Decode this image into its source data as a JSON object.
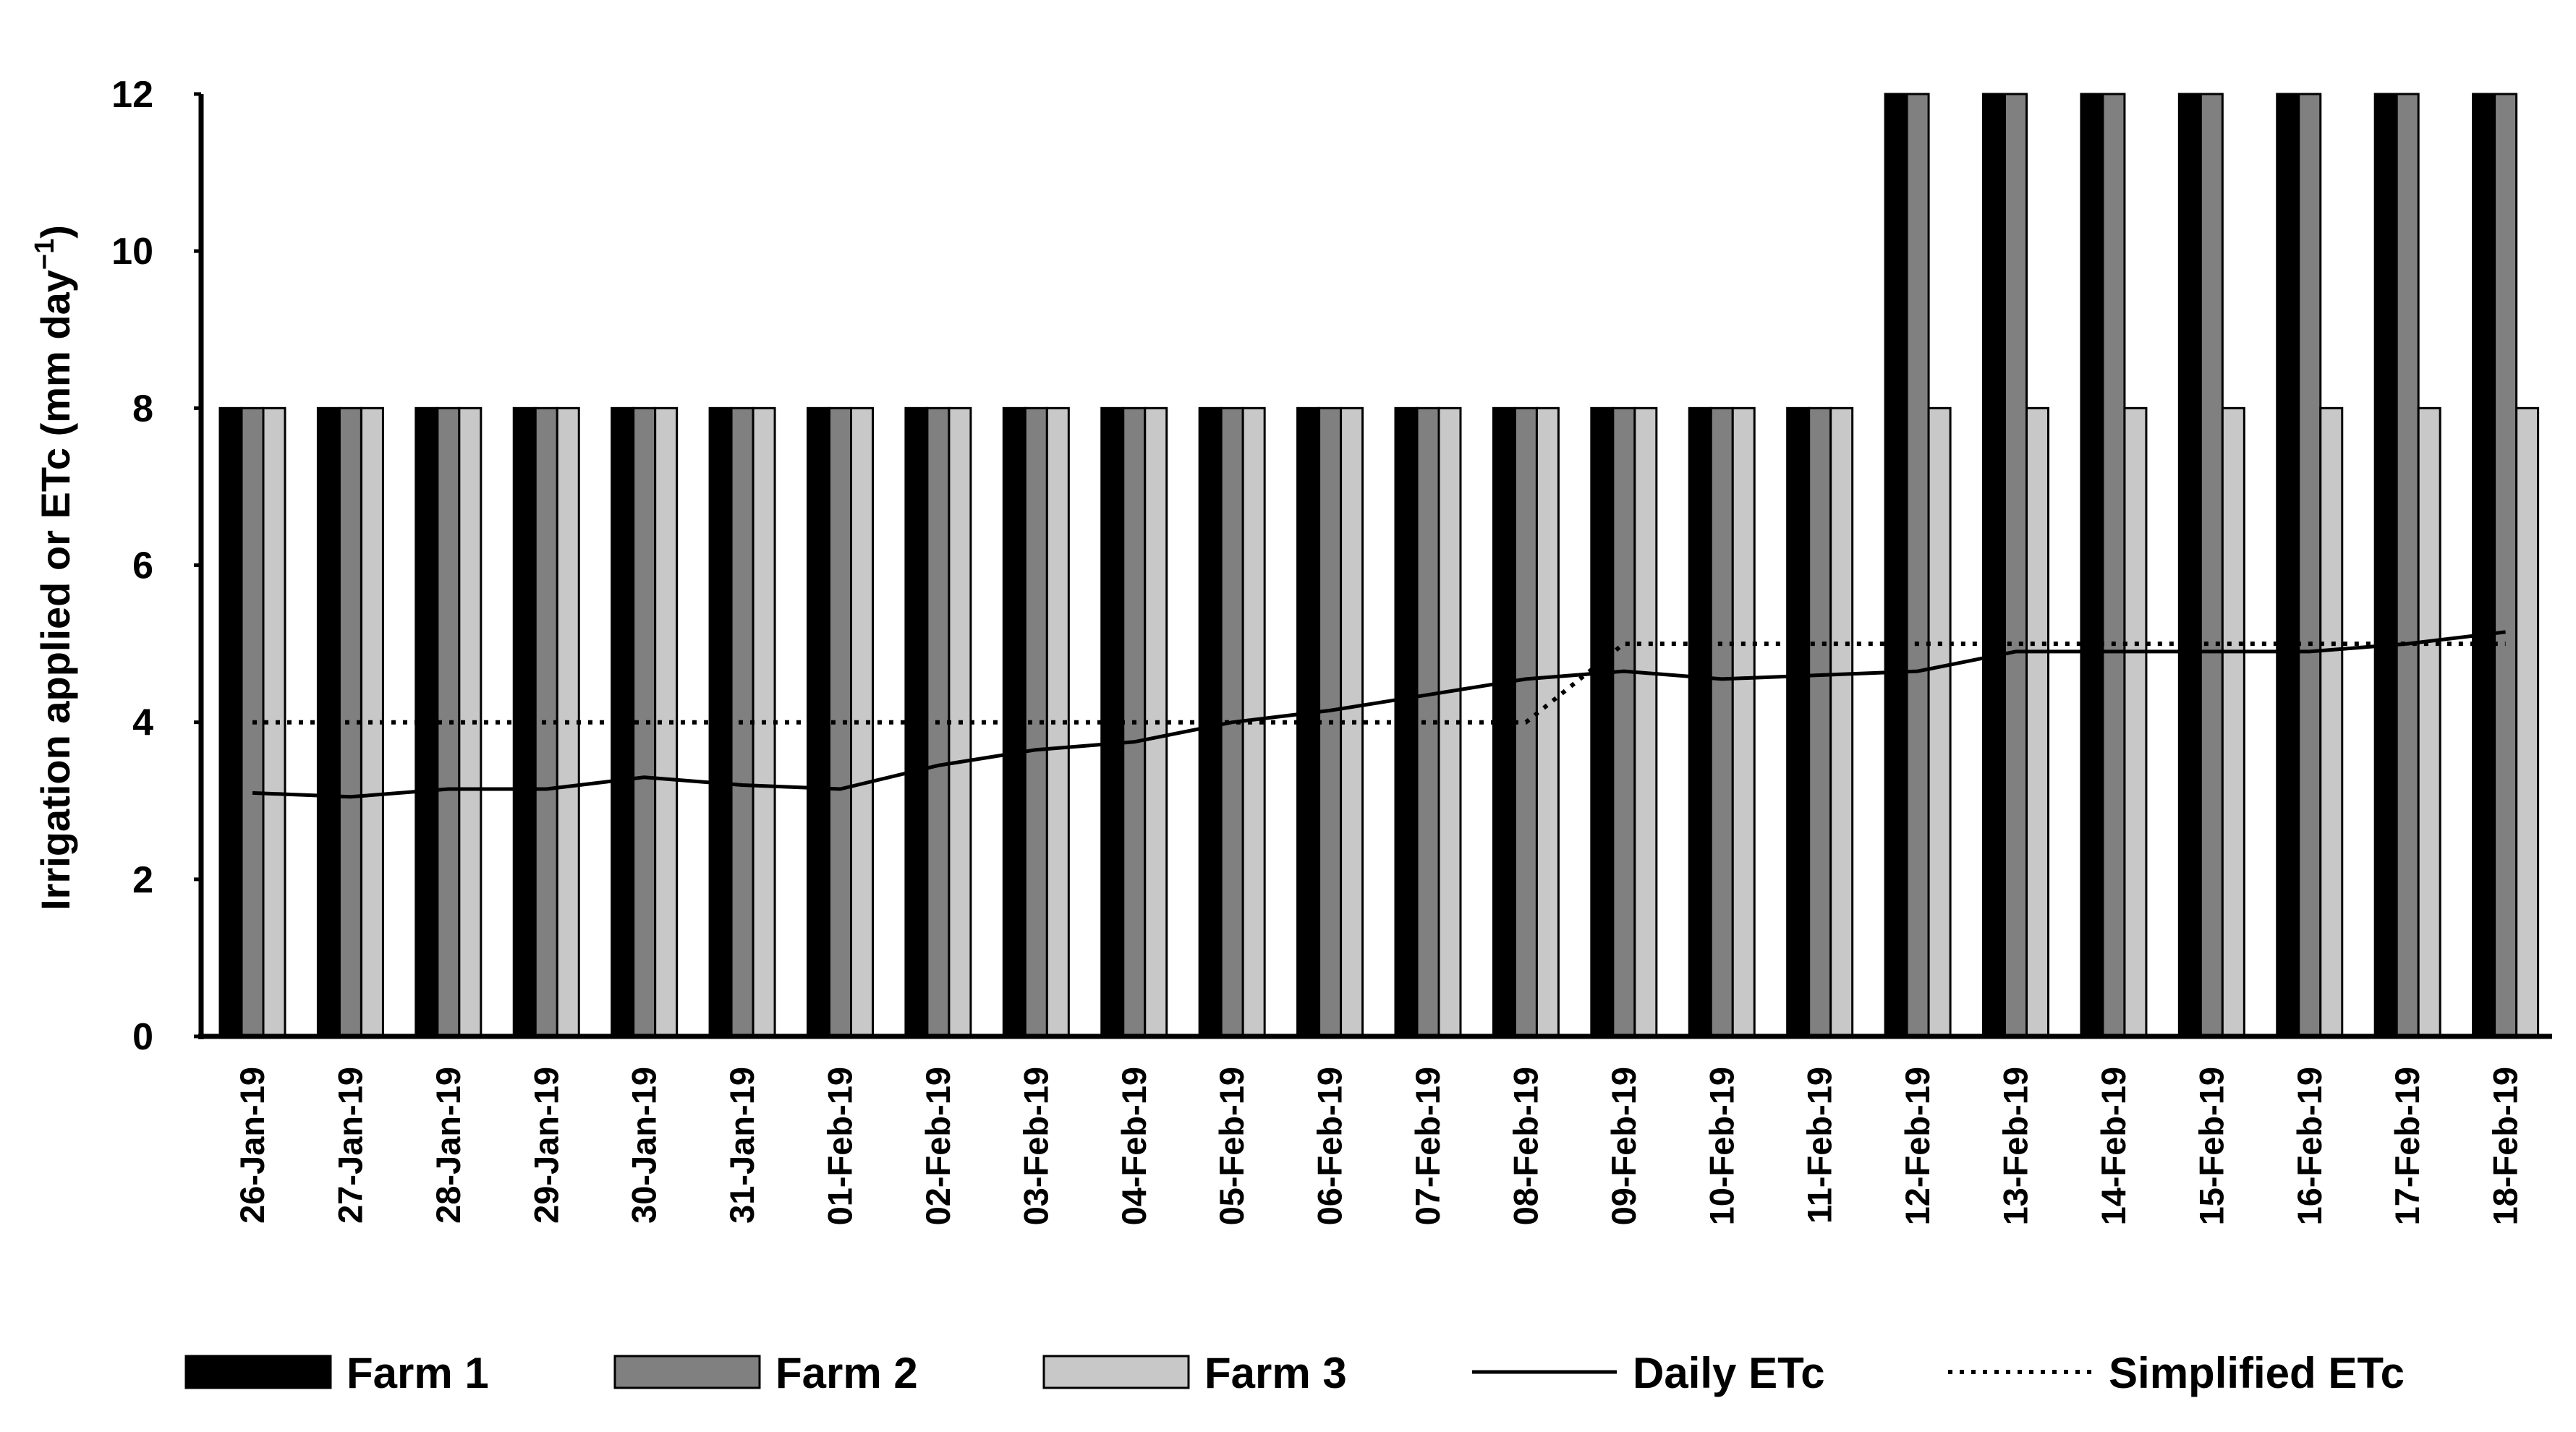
{
  "chart_data": {
    "type": "bar",
    "title": "",
    "xlabel": "",
    "ylabel_main": "Irrigation applied or ETc (mm day",
    "ylabel_sup": "−1",
    "ylabel_close": ")",
    "ylim": [
      0,
      12
    ],
    "yticks": [
      "0",
      "2",
      "4",
      "6",
      "8",
      "10",
      "12"
    ],
    "ytick_values": [
      0,
      2,
      4,
      6,
      8,
      10,
      12
    ],
    "grid": false,
    "legend_position": "bottom",
    "categories": [
      "26-Jan-19",
      "27-Jan-19",
      "28-Jan-19",
      "29-Jan-19",
      "30-Jan-19",
      "31-Jan-19",
      "01-Feb-19",
      "02-Feb-19",
      "03-Feb-19",
      "04-Feb-19",
      "05-Feb-19",
      "06-Feb-19",
      "07-Feb-19",
      "08-Feb-19",
      "09-Feb-19",
      "10-Feb-19",
      "11-Feb-19",
      "12-Feb-19",
      "13-Feb-19",
      "14-Feb-19",
      "15-Feb-19",
      "16-Feb-19",
      "17-Feb-19",
      "18-Feb-19"
    ],
    "series": [
      {
        "name": "Farm 1",
        "kind": "bar",
        "color": "#000000",
        "values": [
          8,
          8,
          8,
          8,
          8,
          8,
          8,
          8,
          8,
          8,
          8,
          8,
          8,
          8,
          8,
          8,
          8,
          12,
          12,
          12,
          12,
          12,
          12,
          12
        ]
      },
      {
        "name": "Farm 2",
        "kind": "bar",
        "color": "#808080",
        "values": [
          8,
          8,
          8,
          8,
          8,
          8,
          8,
          8,
          8,
          8,
          8,
          8,
          8,
          8,
          8,
          8,
          8,
          12,
          12,
          12,
          12,
          12,
          12,
          12
        ]
      },
      {
        "name": "Farm 3",
        "kind": "bar",
        "color": "#c8c8c8",
        "values": [
          8,
          8,
          8,
          8,
          8,
          8,
          8,
          8,
          8,
          8,
          8,
          8,
          8,
          8,
          8,
          8,
          8,
          8,
          8,
          8,
          8,
          8,
          8,
          8
        ]
      },
      {
        "name": "Daily ETc",
        "kind": "line",
        "style": "solid",
        "color": "#000000",
        "values": [
          3.1,
          3.05,
          3.15,
          3.15,
          3.3,
          3.2,
          3.15,
          3.45,
          3.65,
          3.75,
          4.0,
          4.15,
          4.35,
          4.55,
          4.65,
          4.55,
          4.6,
          4.65,
          4.9,
          4.9,
          4.9,
          4.9,
          5.0,
          5.15
        ]
      },
      {
        "name": "Simplified ETc",
        "kind": "line",
        "style": "dotted",
        "color": "#000000",
        "values": [
          4,
          4,
          4,
          4,
          4,
          4,
          4,
          4,
          4,
          4,
          4,
          4,
          4,
          4,
          5,
          5,
          5,
          5,
          5,
          5,
          5,
          5,
          5,
          5
        ]
      }
    ]
  }
}
